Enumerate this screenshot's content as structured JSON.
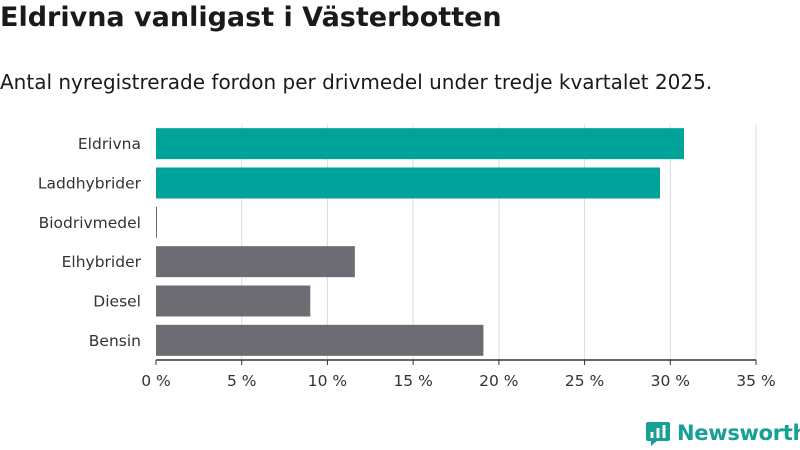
{
  "title": "Eldrivna vanligast i Västerbotten",
  "subtitle": "Antal nyregistrerade fordon per drivmedel under tredje kvartalet 2025.",
  "logo_text": "Newsworthy",
  "colors": {
    "highlight": "#00a39a",
    "default": "#6d6c72",
    "grid": "#dddddd",
    "axis": "#333333"
  },
  "chart_data": {
    "type": "bar",
    "orientation": "horizontal",
    "categories": [
      "Eldrivna",
      "Laddhybrider",
      "Biodrivmedel",
      "Elhybrider",
      "Diesel",
      "Bensin"
    ],
    "values": [
      30.8,
      29.4,
      0.05,
      11.6,
      9.0,
      19.1
    ],
    "highlight": [
      true,
      true,
      false,
      false,
      false,
      false
    ],
    "xlim": [
      0,
      35
    ],
    "xticks": [
      0,
      5,
      10,
      15,
      20,
      25,
      30,
      35
    ],
    "xtick_labels": [
      "0 %",
      "5 %",
      "10 %",
      "15 %",
      "20 %",
      "25 %",
      "30 %",
      "35 %"
    ],
    "unit": "%",
    "xlabel": "",
    "ylabel": "",
    "grid": true
  }
}
